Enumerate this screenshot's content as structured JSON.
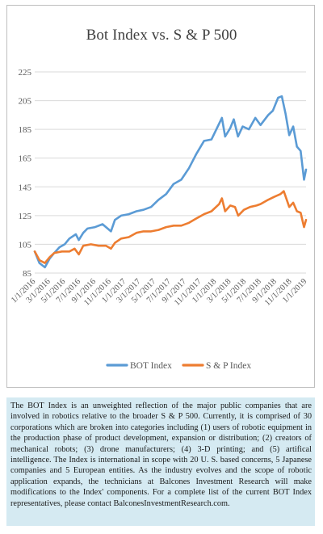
{
  "chart_data": {
    "type": "line",
    "title": "Bot Index vs. S & P 500",
    "xlabel": "",
    "ylabel": "",
    "ylim": [
      85,
      225
    ],
    "yticks": [
      85,
      105,
      125,
      145,
      165,
      185,
      205,
      225
    ],
    "xlim": [
      "2016-01-01",
      "2019-01-01"
    ],
    "xticks": [
      "1/1/2016",
      "3/1/2016",
      "5/1/2016",
      "7/1/2016",
      "9/1/2016",
      "11/1/2016",
      "1/1/2017",
      "3/1/2017",
      "5/1/2017",
      "7/1/2017",
      "9/1/2017",
      "11/1/2017",
      "1/1/2018",
      "3/1/2018",
      "5/1/2018",
      "7/1/2018",
      "9/1/2018",
      "11/1/2018",
      "1/1/2019"
    ],
    "grid": true,
    "legend_position": "bottom",
    "series": [
      {
        "name": "BOT Index",
        "color": "#5b9bd5",
        "points": [
          [
            "2016-01-01",
            100
          ],
          [
            "2016-01-20",
            92
          ],
          [
            "2016-02-11",
            89
          ],
          [
            "2016-03-01",
            95
          ],
          [
            "2016-03-20",
            99
          ],
          [
            "2016-04-10",
            103
          ],
          [
            "2016-05-01",
            105
          ],
          [
            "2016-05-20",
            109
          ],
          [
            "2016-06-15",
            112
          ],
          [
            "2016-06-27",
            108
          ],
          [
            "2016-07-15",
            113
          ],
          [
            "2016-08-01",
            116
          ],
          [
            "2016-09-01",
            117
          ],
          [
            "2016-10-01",
            119
          ],
          [
            "2016-11-04",
            114
          ],
          [
            "2016-11-20",
            122
          ],
          [
            "2016-12-15",
            125
          ],
          [
            "2017-01-15",
            126
          ],
          [
            "2017-02-15",
            128
          ],
          [
            "2017-03-15",
            129
          ],
          [
            "2017-04-15",
            131
          ],
          [
            "2017-05-15",
            136
          ],
          [
            "2017-06-15",
            140
          ],
          [
            "2017-07-15",
            147
          ],
          [
            "2017-08-15",
            150
          ],
          [
            "2017-09-15",
            158
          ],
          [
            "2017-10-15",
            168
          ],
          [
            "2017-11-15",
            177
          ],
          [
            "2017-12-15",
            178
          ],
          [
            "2018-01-15",
            189
          ],
          [
            "2018-01-26",
            193
          ],
          [
            "2018-02-08",
            180
          ],
          [
            "2018-03-01",
            186
          ],
          [
            "2018-03-15",
            192
          ],
          [
            "2018-04-01",
            180
          ],
          [
            "2018-04-20",
            187
          ],
          [
            "2018-05-15",
            185
          ],
          [
            "2018-06-10",
            193
          ],
          [
            "2018-07-01",
            188
          ],
          [
            "2018-08-01",
            195
          ],
          [
            "2018-08-20",
            198
          ],
          [
            "2018-09-10",
            207
          ],
          [
            "2018-09-25",
            208
          ],
          [
            "2018-10-10",
            196
          ],
          [
            "2018-10-25",
            181
          ],
          [
            "2018-11-10",
            187
          ],
          [
            "2018-11-25",
            173
          ],
          [
            "2018-12-10",
            170
          ],
          [
            "2018-12-24",
            150
          ],
          [
            "2019-01-01",
            157
          ]
        ]
      },
      {
        "name": "S & P Index",
        "color": "#ed7d31",
        "points": [
          [
            "2016-01-01",
            100
          ],
          [
            "2016-01-20",
            94
          ],
          [
            "2016-02-11",
            92
          ],
          [
            "2016-03-01",
            96
          ],
          [
            "2016-03-20",
            99
          ],
          [
            "2016-04-20",
            100
          ],
          [
            "2016-05-20",
            100
          ],
          [
            "2016-06-10",
            102
          ],
          [
            "2016-06-27",
            98
          ],
          [
            "2016-07-15",
            104
          ],
          [
            "2016-08-15",
            105
          ],
          [
            "2016-09-15",
            104
          ],
          [
            "2016-10-15",
            104
          ],
          [
            "2016-11-04",
            102
          ],
          [
            "2016-11-20",
            106
          ],
          [
            "2016-12-15",
            109
          ],
          [
            "2017-01-15",
            110
          ],
          [
            "2017-02-15",
            113
          ],
          [
            "2017-03-15",
            114
          ],
          [
            "2017-04-15",
            114
          ],
          [
            "2017-05-15",
            115
          ],
          [
            "2017-06-15",
            117
          ],
          [
            "2017-07-15",
            118
          ],
          [
            "2017-08-15",
            118
          ],
          [
            "2017-09-15",
            120
          ],
          [
            "2017-10-15",
            123
          ],
          [
            "2017-11-15",
            126
          ],
          [
            "2017-12-15",
            128
          ],
          [
            "2018-01-15",
            133
          ],
          [
            "2018-01-26",
            137
          ],
          [
            "2018-02-08",
            128
          ],
          [
            "2018-03-01",
            132
          ],
          [
            "2018-03-20",
            131
          ],
          [
            "2018-04-02",
            125
          ],
          [
            "2018-04-25",
            129
          ],
          [
            "2018-05-20",
            131
          ],
          [
            "2018-06-15",
            132
          ],
          [
            "2018-07-01",
            133
          ],
          [
            "2018-08-01",
            136
          ],
          [
            "2018-08-25",
            138
          ],
          [
            "2018-09-20",
            140
          ],
          [
            "2018-10-03",
            142
          ],
          [
            "2018-10-25",
            131
          ],
          [
            "2018-11-10",
            134
          ],
          [
            "2018-11-25",
            128
          ],
          [
            "2018-12-10",
            127
          ],
          [
            "2018-12-24",
            117
          ],
          [
            "2019-01-01",
            122
          ]
        ]
      }
    ]
  },
  "caption": {
    "text": "The BOT Index is an unweighted reflection of the major public companies that are involved in robotics relative to the broader S & P 500. Currently, it is comprised of 30 corporations which are broken into categories including (1) users of robotic equipment in the production phase of product development, expansion or distribution; (2) creators of mechanical robots; (3) drone manufacturers; (4) 3-D printing; and (5) artifical intelligence. The Index is international in scope with 20 U. S. based concerns, 5 Japanese companies and 5 European entities. As the industry evolves and the scope of robotic application expands, the technicians at Balcones Investment Research will make modifications to the Index' components. For a complete list of the current BOT Index representatives, please contact BalconesInvestmentResearch.com."
  }
}
